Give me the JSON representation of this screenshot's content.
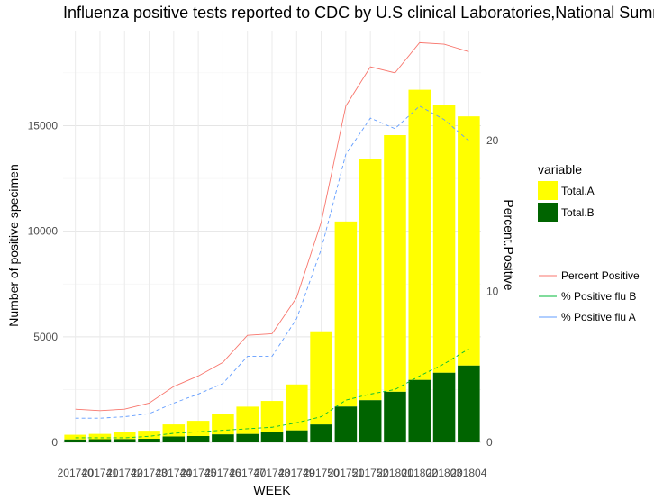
{
  "chart_data": {
    "type": "bar",
    "title": "Influenza positive tests reported to CDC by U.S clinical Laboratories,National Summ",
    "xlabel": "WEEK",
    "ylabel": "Number of positive specimen",
    "y2label": "Percent.Positive",
    "categories": [
      "201740",
      "201741",
      "201742",
      "201743",
      "201744",
      "201745",
      "201746",
      "201747",
      "201748",
      "201749",
      "201750",
      "201751",
      "201752",
      "201801",
      "201802",
      "201803",
      "201804"
    ],
    "ylim": [
      0,
      19500
    ],
    "y_ticks": [
      0,
      5000,
      10000,
      15000
    ],
    "y2lim": [
      0,
      27.3
    ],
    "y2_ticks": [
      0,
      10,
      20
    ],
    "grid": true,
    "legend_position": "right",
    "bars_stacked": true,
    "bar_legend_title": "variable",
    "bar_series": [
      {
        "name": "Total.A",
        "color": "#FFFF00",
        "values": [
          220,
          250,
          330,
          380,
          570,
          720,
          950,
          1290,
          1480,
          2170,
          4410,
          8760,
          11400,
          12150,
          13740,
          12700,
          11800
        ]
      },
      {
        "name": "Total.B",
        "color": "#006400",
        "values": [
          140,
          150,
          160,
          170,
          280,
          300,
          380,
          400,
          480,
          570,
          850,
          1700,
          2000,
          2400,
          2960,
          3300,
          3640
        ]
      }
    ],
    "line_series": [
      {
        "name": "Percent Positive",
        "color": "#F8766D",
        "dash": "solid",
        "values": [
          2.2,
          2.1,
          2.2,
          2.6,
          3.7,
          4.4,
          5.3,
          7.1,
          7.2,
          9.6,
          14.6,
          22.3,
          24.9,
          24.5,
          26.5,
          26.4,
          25.9
        ]
      },
      {
        "name": "% Positive flu B",
        "color": "#00BA38",
        "dash": "dash",
        "values": [
          0.3,
          0.3,
          0.3,
          0.4,
          0.6,
          0.7,
          0.8,
          0.9,
          1.0,
          1.3,
          1.7,
          2.8,
          3.2,
          3.5,
          4.4,
          5.2,
          6.2
        ]
      },
      {
        "name": "% Positive flu  A",
        "color": "#619CFF",
        "dash": "dash",
        "values": [
          1.6,
          1.6,
          1.7,
          1.9,
          2.6,
          3.2,
          3.9,
          5.7,
          5.7,
          8.2,
          12.8,
          19.1,
          21.5,
          20.8,
          22.3,
          21.4,
          20.0
        ]
      }
    ]
  }
}
